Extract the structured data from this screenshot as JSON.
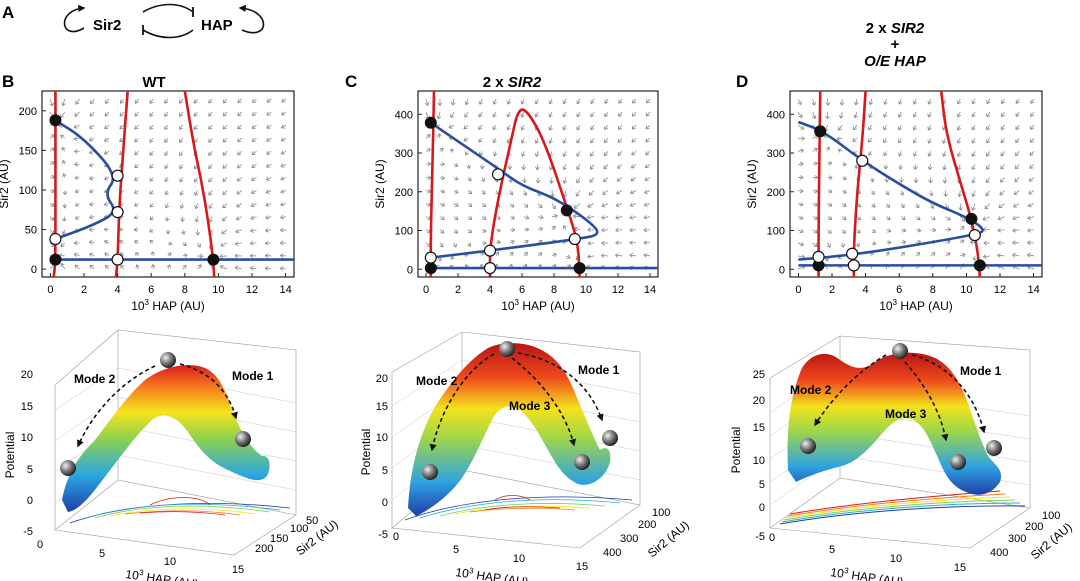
{
  "panel_labels": [
    "A",
    "B",
    "C",
    "D"
  ],
  "schematic": {
    "node1": "Sir2",
    "node2": "HAP"
  },
  "chart_data": [
    {
      "type": "line",
      "panel": "B",
      "title": "WT",
      "xlabel": "10^3 HAP (AU)",
      "ylabel": "Sir2 (AU)",
      "xlim": [
        -0.5,
        14.5
      ],
      "ylim": [
        -10,
        225
      ],
      "xticks": [
        0,
        2,
        4,
        6,
        8,
        10,
        12,
        14
      ],
      "yticks": [
        0,
        50,
        100,
        150,
        200
      ],
      "vector_field": true,
      "series": [
        {
          "color": "#d7191c",
          "points": [
            [
              0.3,
              225
            ],
            [
              0.3,
              110
            ],
            [
              0.3,
              10
            ],
            [
              0.2,
              -10
            ]
          ]
        },
        {
          "color": "#d7191c",
          "points": [
            [
              4.6,
              225
            ],
            [
              4.3,
              140
            ],
            [
              4.1,
              80
            ],
            [
              4.0,
              10
            ],
            [
              3.9,
              -10
            ]
          ]
        },
        {
          "color": "#d7191c",
          "points": [
            [
              8.0,
              225
            ],
            [
              8.5,
              160
            ],
            [
              9.0,
              110
            ],
            [
              9.4,
              60
            ],
            [
              9.7,
              10
            ],
            [
              9.75,
              -10
            ]
          ]
        },
        {
          "color": "#2b4da0",
          "points": [
            [
              0.3,
              188
            ],
            [
              2.0,
              165
            ],
            [
              4.0,
              118
            ],
            [
              3.2,
              95
            ],
            [
              4.0,
              72
            ],
            [
              2.5,
              55
            ],
            [
              0.3,
              38
            ]
          ]
        },
        {
          "color": "#2b4da0",
          "points": [
            [
              0.3,
              12
            ],
            [
              2,
              12
            ],
            [
              6,
              12
            ],
            [
              10,
              12
            ],
            [
              14.5,
              12
            ]
          ]
        }
      ],
      "stable_points": [
        [
          0.3,
          188
        ],
        [
          0.3,
          12
        ],
        [
          9.7,
          12
        ]
      ],
      "unstable_points": [
        [
          4.0,
          118
        ],
        [
          4.0,
          72
        ],
        [
          0.3,
          38
        ],
        [
          4.0,
          12
        ]
      ]
    },
    {
      "type": "line",
      "panel": "C",
      "title": "2 x SIR2",
      "xlabel": "10^3 HAP (AU)",
      "ylabel": "Sir2 (AU)",
      "xlim": [
        -0.5,
        14.5
      ],
      "ylim": [
        -20,
        460
      ],
      "xticks": [
        0,
        2,
        4,
        6,
        8,
        10,
        12,
        14
      ],
      "yticks": [
        0,
        100,
        200,
        300,
        400
      ],
      "vector_field": true,
      "series": [
        {
          "color": "#d7191c",
          "points": [
            [
              0.5,
              460
            ],
            [
              0.4,
              250
            ],
            [
              0.3,
              100
            ],
            [
              0.3,
              -20
            ]
          ]
        },
        {
          "color": "#d7191c",
          "points": [
            [
              4.0,
              -20
            ],
            [
              4.0,
              60
            ],
            [
              4.5,
              180
            ],
            [
              5.3,
              330
            ],
            [
              5.8,
              420
            ],
            [
              6.5,
              400
            ],
            [
              7.5,
              320
            ],
            [
              8.8,
              160
            ],
            [
              9.5,
              70
            ],
            [
              9.6,
              -20
            ]
          ]
        },
        {
          "color": "#2b4da0",
          "points": [
            [
              0.3,
              378
            ],
            [
              2.0,
              330
            ],
            [
              4.5,
              260
            ],
            [
              6,
              215
            ],
            [
              8,
              185
            ],
            [
              10,
              130
            ],
            [
              11,
              90
            ],
            [
              9.5,
              78
            ],
            [
              4,
              48
            ],
            [
              0.3,
              30
            ]
          ]
        },
        {
          "color": "#2b4da0",
          "points": [
            [
              0.3,
              3
            ],
            [
              4,
              3
            ],
            [
              10,
              3
            ],
            [
              14.5,
              3
            ]
          ]
        }
      ],
      "stable_points": [
        [
          0.3,
          378
        ],
        [
          8.8,
          152
        ],
        [
          0.3,
          3
        ],
        [
          9.6,
          3
        ]
      ],
      "unstable_points": [
        [
          4.5,
          245
        ],
        [
          9.3,
          78
        ],
        [
          4.0,
          48
        ],
        [
          0.3,
          30
        ],
        [
          4.0,
          3
        ]
      ]
    },
    {
      "type": "line",
      "panel": "D",
      "title": "2 x SIR2 + O/E HAP",
      "xlabel": "10^3 HAP (AU)",
      "ylabel": "Sir2 (AU)",
      "xlim": [
        -0.5,
        14.5
      ],
      "ylim": [
        -20,
        460
      ],
      "xticks": [
        0,
        2,
        4,
        6,
        8,
        10,
        12,
        14
      ],
      "yticks": [
        0,
        100,
        200,
        300,
        400
      ],
      "vector_field": true,
      "series": [
        {
          "color": "#d7191c",
          "points": [
            [
              1.3,
              460
            ],
            [
              1.25,
              300
            ],
            [
              1.2,
              100
            ],
            [
              1.2,
              -20
            ]
          ]
        },
        {
          "color": "#d7191c",
          "points": [
            [
              3.3,
              -20
            ],
            [
              3.3,
              60
            ],
            [
              3.5,
              200
            ],
            [
              3.8,
              330
            ],
            [
              4.0,
              460
            ]
          ]
        },
        {
          "color": "#d7191c",
          "points": [
            [
              8.5,
              460
            ],
            [
              8.8,
              350
            ],
            [
              9.6,
              230
            ],
            [
              10.3,
              130
            ],
            [
              10.7,
              40
            ],
            [
              10.8,
              -20
            ]
          ]
        },
        {
          "color": "#2b4da0",
          "points": [
            [
              0,
              380
            ],
            [
              1.5,
              356
            ],
            [
              3.8,
              280
            ],
            [
              6,
              220
            ],
            [
              8,
              170
            ],
            [
              10,
              135
            ],
            [
              11.2,
              100
            ],
            [
              10.4,
              88
            ],
            [
              5,
              48
            ],
            [
              2,
              32
            ],
            [
              0,
              25
            ]
          ]
        },
        {
          "color": "#2b4da0",
          "points": [
            [
              0,
              10
            ],
            [
              4,
              10
            ],
            [
              10,
              10
            ],
            [
              14.5,
              10
            ]
          ]
        }
      ],
      "stable_points": [
        [
          1.3,
          356
        ],
        [
          10.3,
          130
        ],
        [
          1.2,
          10
        ],
        [
          10.8,
          10
        ]
      ],
      "unstable_points": [
        [
          3.8,
          280
        ],
        [
          10.5,
          88
        ],
        [
          3.2,
          40
        ],
        [
          1.2,
          32
        ],
        [
          3.3,
          10
        ]
      ]
    },
    {
      "type": "area",
      "panel": "B",
      "xlabel": "10^3 HAP (AU)",
      "ylabel": "Sir2 (AU)",
      "zlabel": "Potential",
      "zticks": [
        -5,
        0,
        5,
        10,
        15,
        20
      ],
      "xticks": [
        0,
        5,
        10,
        15
      ],
      "yticks": [
        50,
        100,
        150,
        200
      ],
      "colormap": "jet",
      "annotations": [
        "Mode 2",
        "Mode 1"
      ]
    },
    {
      "type": "area",
      "panel": "C",
      "xlabel": "10^3 HAP (AU)",
      "ylabel": "Sir2 (AU)",
      "zlabel": "Potential",
      "zticks": [
        -5,
        0,
        5,
        10,
        15,
        20
      ],
      "xticks": [
        0,
        5,
        10,
        15
      ],
      "yticks": [
        100,
        200,
        300,
        400
      ],
      "colormap": "jet",
      "annotations": [
        "Mode 2",
        "Mode 1",
        "Mode 3"
      ]
    },
    {
      "type": "area",
      "panel": "D",
      "xlabel": "10^3 HAP (AU)",
      "ylabel": "Sir2 (AU)",
      "zlabel": "Potential",
      "zticks": [
        -5,
        0,
        5,
        10,
        15,
        20,
        25
      ],
      "xticks": [
        0,
        5,
        10,
        15
      ],
      "yticks": [
        100,
        200,
        300,
        400
      ],
      "colormap": "jet",
      "annotations": [
        "Mode 2",
        "Mode 1",
        "Mode 3"
      ]
    }
  ]
}
